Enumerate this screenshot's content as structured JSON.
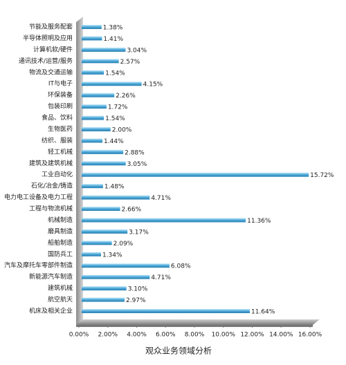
{
  "chart_data": {
    "type": "barh",
    "title": "观众业务领域分析",
    "categories": [
      "节能及服务配套",
      "半导体照明及应用",
      "计算机软/硬件",
      "通讯技术/运营/服务",
      "物流及交通运输",
      "IT与电子",
      "环保装备",
      "包装印刷",
      "食品、饮料",
      "生物医药",
      "纺织、服装",
      "轻工机械",
      "建筑及建筑机械",
      "工业自动化",
      "石化/冶金/铸造",
      "电力电工设备及电力工程",
      "工程与物流机械",
      "机械制造",
      "磨具制造",
      "船舶制造",
      "国防兵工",
      "汽车及摩托车零部件制造",
      "新能源汽车制造",
      "建筑机械",
      "航空航天",
      "机床及相关企业"
    ],
    "values": [
      1.38,
      1.41,
      3.04,
      2.57,
      1.54,
      4.15,
      2.26,
      1.72,
      1.54,
      2.0,
      1.44,
      2.88,
      3.05,
      15.72,
      1.48,
      4.71,
      2.66,
      11.36,
      3.17,
      2.09,
      1.34,
      6.08,
      4.71,
      3.1,
      2.97,
      11.64
    ],
    "value_labels": [
      "1.38%",
      "1.41%",
      "3.04%",
      "2.57%",
      "1.54%",
      "4.15%",
      "2.26%",
      "1.72%",
      "1.54%",
      "2.00%",
      "1.44%",
      "2.88%",
      "3.05%",
      "15.72%",
      "1.48%",
      "4.71%",
      "2.66%",
      "11.36%",
      "3.17%",
      "2.09%",
      "1.34%",
      "6.08%",
      "4.71%",
      "3.10%",
      "2.97%",
      "11.64%"
    ],
    "color": "#4aa8d8",
    "xlim": [
      0,
      16
    ],
    "xticks": [
      {
        "value": 0,
        "label": "0.00%"
      },
      {
        "value": 2,
        "label": "2.00%"
      },
      {
        "value": 4,
        "label": "4.00%"
      },
      {
        "value": 6,
        "label": "6.00%"
      },
      {
        "value": 8,
        "label": "8.00%"
      },
      {
        "value": 10,
        "label": "10.00%"
      },
      {
        "value": 12,
        "label": "12.00%"
      },
      {
        "value": 14,
        "label": "14.00%"
      },
      {
        "value": 16,
        "label": "16.00%"
      }
    ]
  }
}
